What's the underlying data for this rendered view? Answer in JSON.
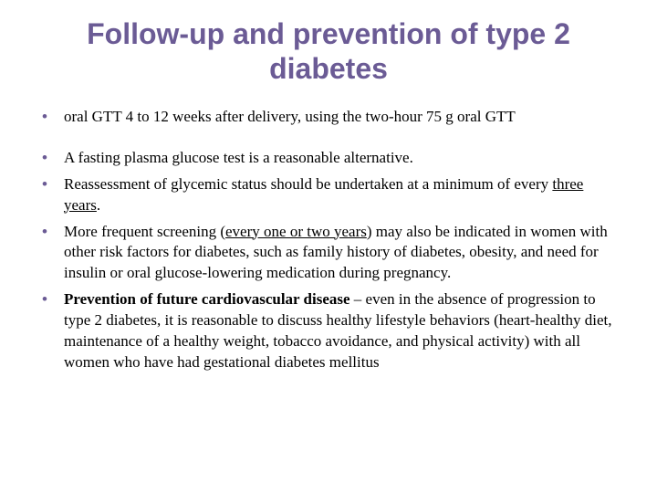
{
  "title": "Follow-up and prevention of type 2 diabetes",
  "bullets": {
    "b1": "oral GTT 4 to 12 weeks after delivery, using the two-hour 75 g oral GTT",
    "b2": " A fasting plasma glucose test is a reasonable alternative.",
    "b3_pre": "Reassessment of glycemic status should be undertaken at a minimum of every ",
    "b3_ul": "three years",
    "b3_post": ".",
    "b4_pre": "More frequent screening (",
    "b4_ul": "every one or two years",
    "b4_post": ") may also be indicated in women with other risk factors for diabetes, such as family history of diabetes, obesity, and need for insulin or oral glucose-lowering medication during pregnancy.",
    "b5_bold": "Prevention of future cardiovascular disease",
    "b5_post": " –  even in the absence of progression to type 2 diabetes, it is reasonable to discuss healthy lifestyle behaviors (heart-healthy diet, maintenance of a healthy weight, tobacco avoidance, and physical activity) with all women who have had gestational diabetes mellitus"
  },
  "colors": {
    "accent": "#6b5b95",
    "text": "#000000",
    "background": "#ffffff"
  }
}
